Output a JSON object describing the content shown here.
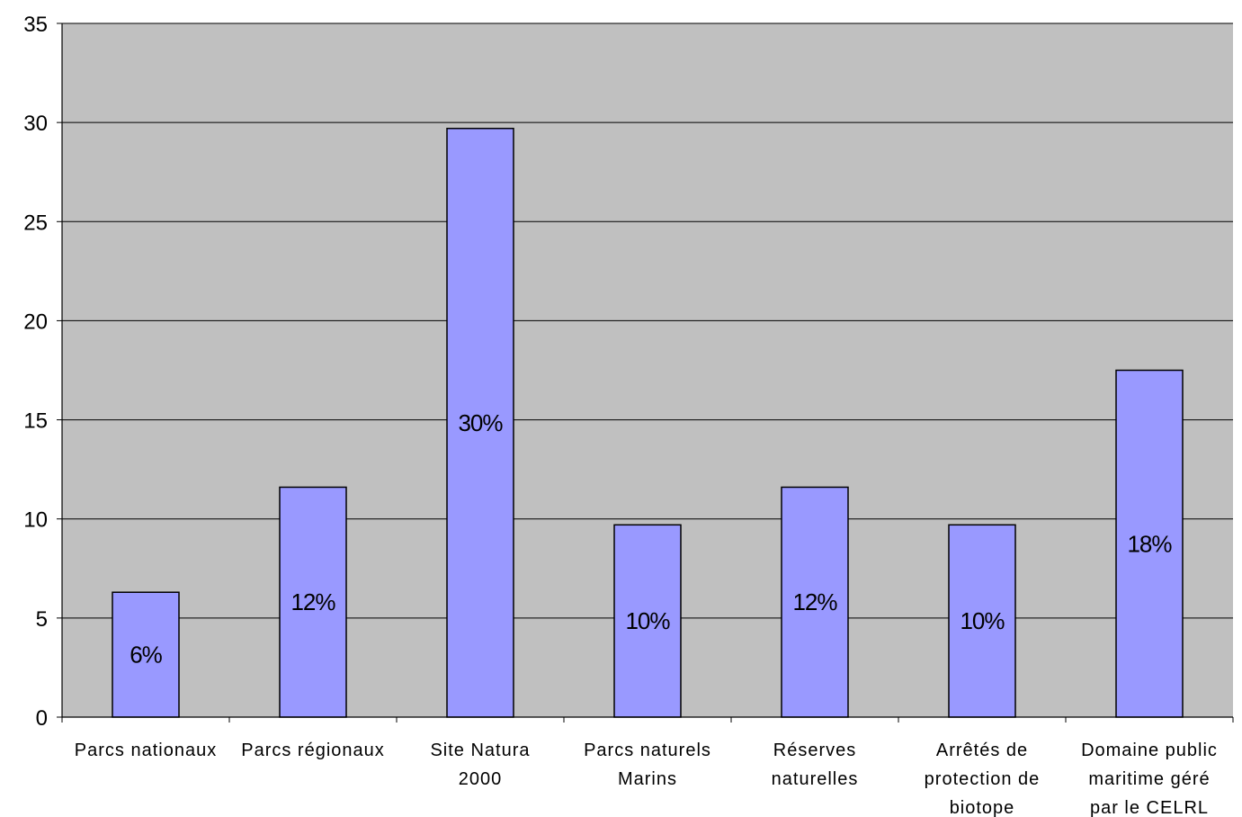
{
  "chart_data": {
    "type": "bar",
    "categories": [
      "Parcs nationaux",
      "Parcs régionaux",
      "Site Natura 2000",
      "Parcs naturels Marins",
      "Réserves naturelles",
      "Arrêtés de protection de biotope",
      "Domaine public maritime géré par le CELRL"
    ],
    "category_lines": [
      [
        "Parcs nationaux"
      ],
      [
        "Parcs régionaux"
      ],
      [
        "Site Natura",
        "2000"
      ],
      [
        "Parcs naturels",
        "Marins"
      ],
      [
        "Réserves",
        "naturelles"
      ],
      [
        "Arrêtés de",
        "protection de",
        "biotope"
      ],
      [
        "Domaine public",
        "maritime géré",
        "par le CELRL"
      ]
    ],
    "values": [
      6.3,
      11.6,
      29.7,
      9.7,
      11.6,
      9.7,
      17.5
    ],
    "data_labels": [
      "6%",
      "12%",
      "30%",
      "10%",
      "12%",
      "10%",
      "18%"
    ],
    "yticks": [
      "0",
      "5",
      "10",
      "15",
      "20",
      "25",
      "30",
      "35"
    ],
    "ylim": [
      0,
      35
    ],
    "title": "",
    "xlabel": "",
    "ylabel": "",
    "grid": true,
    "legend": "none",
    "colors": {
      "plot_background": "#c0c0c0",
      "bar_fill": "#9999ff",
      "bar_stroke": "#000000",
      "grid": "#000000"
    }
  }
}
